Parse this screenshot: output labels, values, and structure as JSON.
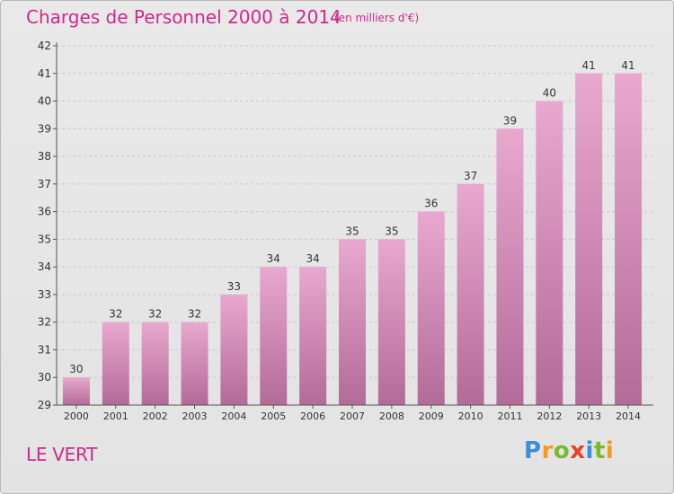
{
  "header": {
    "title": "Charges de Personnel 2000 à 2014",
    "subtitle": "(en milliers d'€)"
  },
  "footer": {
    "commune": "LE VERT",
    "logo_letters": [
      "P",
      "r",
      "o",
      "x",
      "i",
      "t",
      "i"
    ],
    "logo_colors": [
      "#3b8fd9",
      "#f29a1d",
      "#7ab929",
      "#e8402a",
      "#3b8fd9",
      "#7ab929",
      "#f29a1d"
    ]
  },
  "chart_data": {
    "type": "bar",
    "categories": [
      "2000",
      "2001",
      "2002",
      "2003",
      "2004",
      "2005",
      "2006",
      "2007",
      "2008",
      "2009",
      "2010",
      "2011",
      "2012",
      "2013",
      "2014"
    ],
    "values": [
      30,
      32,
      32,
      32,
      33,
      34,
      34,
      35,
      35,
      36,
      37,
      39,
      40,
      41,
      41
    ],
    "data_labels": [
      "30",
      "32",
      "32",
      "32",
      "33",
      "34",
      "34",
      "35",
      "35",
      "36",
      "37",
      "39",
      "40",
      "41",
      "41"
    ],
    "ylim": [
      29,
      42
    ],
    "yticks": [
      29,
      30,
      31,
      32,
      33,
      34,
      35,
      36,
      37,
      38,
      39,
      40,
      41,
      42
    ],
    "grid": true,
    "bar_color_top": "#e8a8cf",
    "bar_color_bottom": "#b36b98"
  }
}
